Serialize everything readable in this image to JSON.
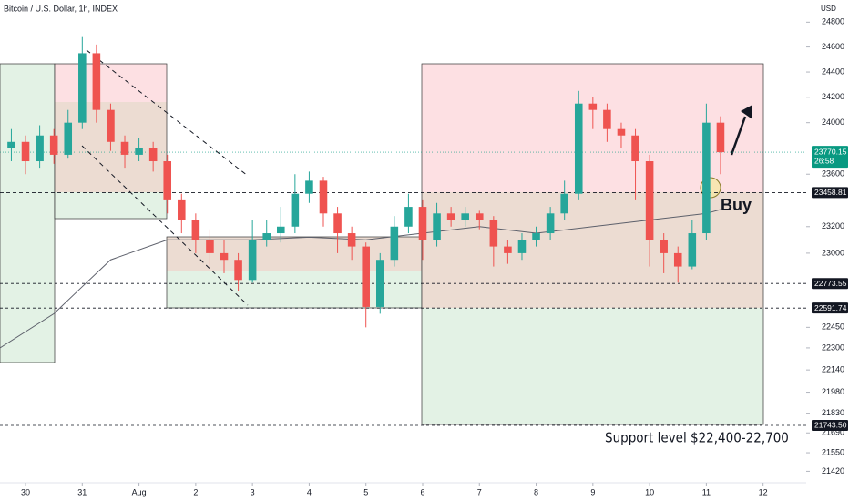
{
  "chart_data": {
    "type": "candlestick",
    "title": "Bitcoin / U.S. Dollar, 1h, INDEX",
    "currency_label": "USD",
    "log_scale": true,
    "up_color": "#26a69a",
    "down_color": "#ef5350",
    "xlim": [
      -0.45,
      13.76
    ],
    "xticks": [
      {
        "value": 0,
        "label": "30"
      },
      {
        "value": 1,
        "label": "31"
      },
      {
        "value": 2,
        "label": "Aug"
      },
      {
        "value": 3,
        "label": "2"
      },
      {
        "value": 4,
        "label": "3"
      },
      {
        "value": 5,
        "label": "4"
      },
      {
        "value": 6,
        "label": "5"
      },
      {
        "value": 7,
        "label": "6"
      },
      {
        "value": 8,
        "label": "7"
      },
      {
        "value": 9,
        "label": "8"
      },
      {
        "value": 10,
        "label": "9"
      },
      {
        "value": 11,
        "label": "10"
      },
      {
        "value": 12,
        "label": "11"
      },
      {
        "value": 13,
        "label": "12"
      }
    ],
    "ylim": [
      21340,
      24980
    ],
    "yticks": [
      24800,
      24600,
      24400,
      24200,
      24000,
      23600,
      23200,
      23000,
      22450,
      22300,
      22140,
      21980,
      21830,
      21690,
      21550,
      21420
    ],
    "x": [
      -0.25,
      0,
      0.25,
      0.5,
      0.75,
      1,
      1.25,
      1.5,
      1.75,
      2,
      2.25,
      2.5,
      2.75,
      3,
      3.25,
      3.5,
      3.75,
      4,
      4.25,
      4.5,
      4.75,
      5,
      5.25,
      5.5,
      5.75,
      6,
      6.25,
      6.5,
      6.75,
      7,
      7.25,
      7.5,
      7.75,
      8,
      8.25,
      8.5,
      8.75,
      9,
      9.25,
      9.5,
      9.75,
      10,
      10.25,
      10.5,
      10.75,
      11,
      11.25,
      11.5,
      11.75,
      12,
      12.25
    ],
    "open": [
      23800,
      23850,
      23700,
      23900,
      23750,
      24000,
      24550,
      24100,
      23850,
      23750,
      23800,
      23700,
      23400,
      23250,
      23100,
      23000,
      22950,
      22800,
      23100,
      23150,
      23200,
      23450,
      23550,
      23300,
      23150,
      23050,
      22600,
      22950,
      23200,
      23350,
      23100,
      23300,
      23250,
      23300,
      23250,
      23050,
      23000,
      23100,
      23150,
      23300,
      23450,
      24150,
      24100,
      23950,
      23900,
      23700,
      23100,
      23000,
      22900,
      23150,
      24000
    ],
    "high": [
      23950,
      23900,
      23980,
      23950,
      24100,
      24680,
      24620,
      24150,
      23900,
      23880,
      23850,
      23750,
      23450,
      23300,
      23180,
      23100,
      23000,
      23250,
      23250,
      23350,
      23600,
      23620,
      23580,
      23350,
      23200,
      23080,
      23000,
      23280,
      23450,
      23400,
      23380,
      23350,
      23350,
      23320,
      23280,
      23100,
      23150,
      23200,
      23350,
      23550,
      24250,
      24200,
      24150,
      24000,
      23950,
      23750,
      23150,
      23050,
      23250,
      24150,
      24050
    ],
    "low": [
      23700,
      23600,
      23650,
      23680,
      23720,
      23950,
      24000,
      23780,
      23650,
      23700,
      23620,
      23300,
      23150,
      23000,
      22900,
      22850,
      22720,
      22780,
      23050,
      23080,
      23150,
      23380,
      23200,
      23000,
      22950,
      22450,
      22550,
      22900,
      23150,
      22950,
      23050,
      23200,
      23200,
      23180,
      22900,
      22920,
      22950,
      23050,
      23100,
      23250,
      23400,
      23950,
      23850,
      23800,
      23400,
      22900,
      22850,
      22780,
      22880,
      23100,
      23600
    ],
    "close": [
      23850,
      23700,
      23900,
      23750,
      24000,
      24550,
      24100,
      23850,
      23750,
      23800,
      23700,
      23400,
      23250,
      23100,
      23000,
      22950,
      22800,
      23100,
      23150,
      23200,
      23450,
      23550,
      23300,
      23150,
      23050,
      22600,
      22950,
      23200,
      23350,
      23100,
      23300,
      23250,
      23300,
      23250,
      23050,
      23000,
      23100,
      23150,
      23300,
      23450,
      24150,
      24100,
      23950,
      23900,
      23700,
      23100,
      23000,
      22900,
      23150,
      24000,
      23770
    ],
    "moving_average": {
      "color": "#5d606b",
      "x": [
        -0.45,
        0.5,
        1,
        1.5,
        2.5,
        4,
        5,
        6,
        7,
        8,
        9,
        10,
        11,
        12,
        12.25
      ],
      "values": [
        22300,
        22550,
        22750,
        22950,
        23100,
        23100,
        23120,
        23100,
        23150,
        23200,
        23150,
        23200,
        23250,
        23300,
        23330
      ]
    },
    "price_levels": [
      {
        "value": 23458.81,
        "label": "23458.81"
      },
      {
        "value": 22773.55,
        "label": "22773.55"
      },
      {
        "value": 22591.74,
        "label": "22591.74"
      },
      {
        "value": 21743.5,
        "label": "21743.50"
      }
    ],
    "last_price": {
      "value": 23770.15,
      "label": "23770.15",
      "countdown": "26:58",
      "color": "#089981"
    },
    "annotations": [
      "Buy",
      "Support level $22,400-22,700"
    ]
  }
}
